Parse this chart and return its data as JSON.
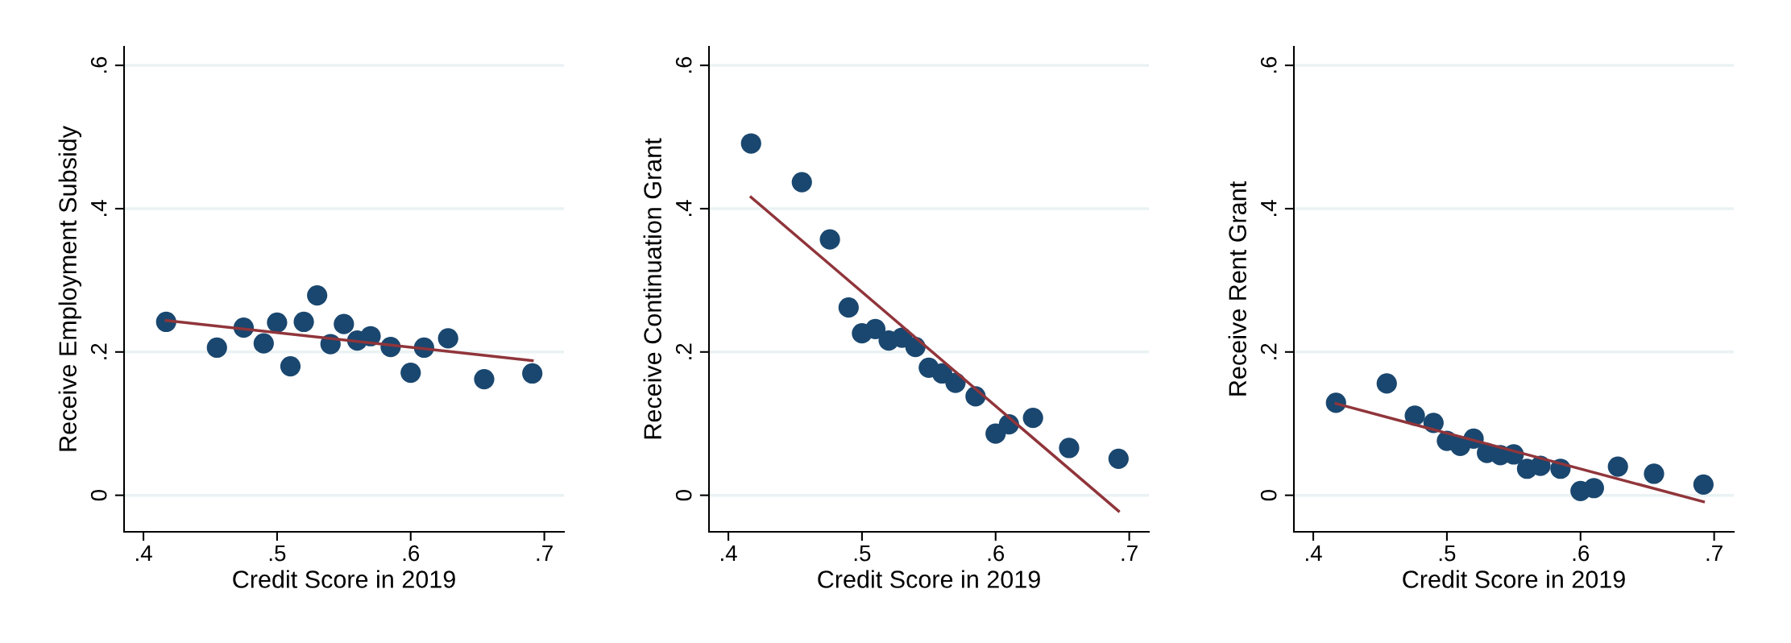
{
  "chart_data": [
    {
      "type": "scatter",
      "xlabel": "Credit Score in 2019",
      "ylabel": "Receive Employment Subsidy",
      "xlim": [
        0.3855,
        0.7147
      ],
      "ylim": [
        -0.051,
        0.626
      ],
      "xticks": [
        {
          "value": 0.4,
          "label": ".4"
        },
        {
          "value": 0.5,
          "label": ".5"
        },
        {
          "value": 0.6,
          "label": ".6"
        },
        {
          "value": 0.7,
          "label": ".7"
        }
      ],
      "yticks": [
        0,
        {
          "value": 0.2,
          "label": ".2"
        },
        {
          "value": 0.4,
          "label": ".4"
        },
        {
          "value": 0.6,
          "label": ".6"
        }
      ],
      "grid": "y",
      "series": [
        {
          "marker": "circle",
          "color": "#1a476f",
          "x": [
            0.417,
            0.455,
            0.475,
            0.49,
            0.5,
            0.51,
            0.52,
            0.53,
            0.54,
            0.55,
            0.56,
            0.57,
            0.585,
            0.6,
            0.61,
            0.628,
            0.655,
            0.691
          ],
          "values": [
            0.242,
            0.206,
            0.234,
            0.212,
            0.241,
            0.18,
            0.242,
            0.279,
            0.211,
            0.239,
            0.216,
            0.222,
            0.207,
            0.171,
            0.206,
            0.219,
            0.162,
            0.17
          ]
        },
        {
          "type": "line",
          "color": "#90353b",
          "x": [
            0.417,
            0.691
          ],
          "values": [
            0.244,
            0.188
          ]
        }
      ]
    },
    {
      "type": "scatter",
      "xlabel": "Credit Score in 2019",
      "ylabel": "Receive Continuation Grant",
      "xlim": [
        0.3855,
        0.7147
      ],
      "ylim": [
        -0.051,
        0.626
      ],
      "xticks": [
        {
          "value": 0.4,
          "label": ".4"
        },
        {
          "value": 0.5,
          "label": ".5"
        },
        {
          "value": 0.6,
          "label": ".6"
        },
        {
          "value": 0.7,
          "label": ".7"
        }
      ],
      "yticks": [
        0,
        {
          "value": 0.2,
          "label": ".2"
        },
        {
          "value": 0.4,
          "label": ".4"
        },
        {
          "value": 0.6,
          "label": ".6"
        }
      ],
      "grid": "y",
      "series": [
        {
          "marker": "circle",
          "color": "#1a476f",
          "x": [
            0.417,
            0.455,
            0.476,
            0.49,
            0.5,
            0.51,
            0.52,
            0.53,
            0.54,
            0.55,
            0.56,
            0.57,
            0.585,
            0.6,
            0.61,
            0.628,
            0.655,
            0.692
          ],
          "values": [
            0.491,
            0.437,
            0.357,
            0.262,
            0.226,
            0.232,
            0.216,
            0.22,
            0.207,
            0.178,
            0.17,
            0.157,
            0.138,
            0.086,
            0.099,
            0.108,
            0.066,
            0.051
          ]
        },
        {
          "type": "line",
          "color": "#90353b",
          "x": [
            0.417,
            0.692
          ],
          "values": [
            0.416,
            -0.022
          ]
        }
      ]
    },
    {
      "type": "scatter",
      "xlabel": "Credit Score in 2019",
      "ylabel": "Receive Rent Grant",
      "xlim": [
        0.3855,
        0.7147
      ],
      "ylim": [
        -0.051,
        0.626
      ],
      "xticks": [
        {
          "value": 0.4,
          "label": ".4"
        },
        {
          "value": 0.5,
          "label": ".5"
        },
        {
          "value": 0.6,
          "label": ".6"
        },
        {
          "value": 0.7,
          "label": ".7"
        }
      ],
      "yticks": [
        0,
        {
          "value": 0.2,
          "label": ".2"
        },
        {
          "value": 0.4,
          "label": ".4"
        },
        {
          "value": 0.6,
          "label": ".6"
        }
      ],
      "grid": "y",
      "series": [
        {
          "marker": "circle",
          "color": "#1a476f",
          "x": [
            0.417,
            0.455,
            0.476,
            0.49,
            0.5,
            0.51,
            0.52,
            0.53,
            0.54,
            0.55,
            0.56,
            0.57,
            0.585,
            0.6,
            0.61,
            0.628,
            0.655,
            0.692
          ],
          "values": [
            0.129,
            0.156,
            0.111,
            0.101,
            0.076,
            0.069,
            0.079,
            0.059,
            0.056,
            0.057,
            0.037,
            0.041,
            0.037,
            0.006,
            0.01,
            0.04,
            0.03,
            0.015
          ]
        },
        {
          "type": "line",
          "color": "#90353b",
          "x": [
            0.417,
            0.692
          ],
          "values": [
            0.128,
            -0.009
          ]
        }
      ]
    }
  ]
}
